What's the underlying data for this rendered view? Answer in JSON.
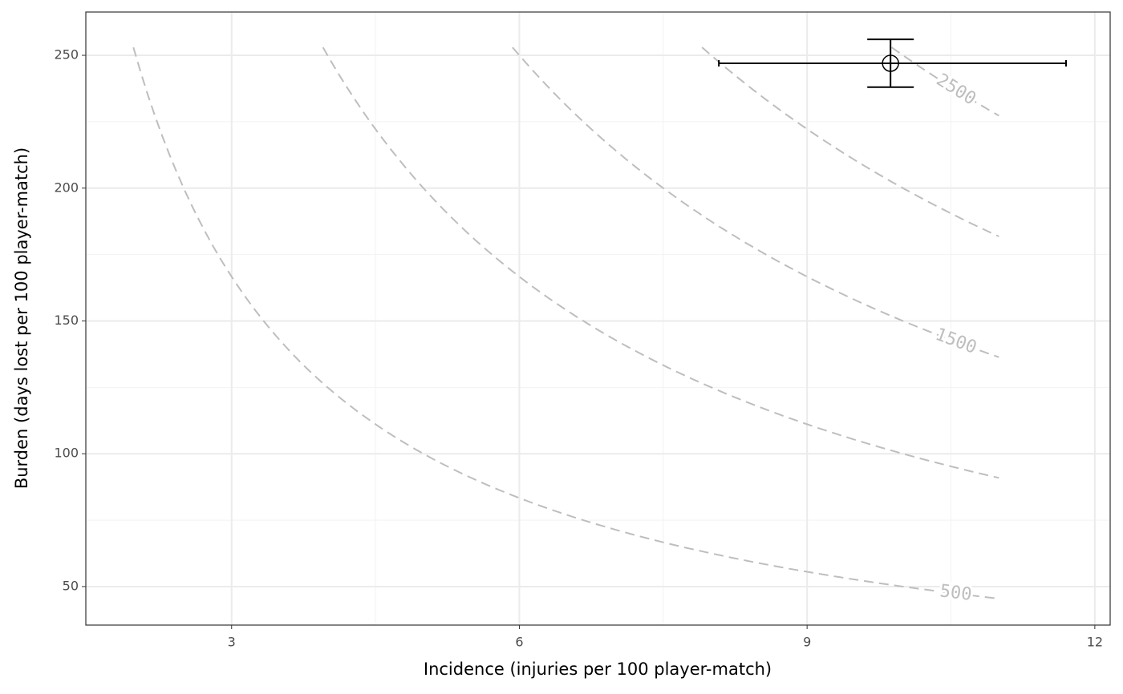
{
  "chart_data": {
    "type": "scatter",
    "xlabel": "Incidence (injuries per 100 player-match)",
    "ylabel": "Burden (days lost per 100 player-match)",
    "x": [
      9.87
    ],
    "values": [
      247
    ],
    "x_lower": [
      8.08
    ],
    "x_upper": [
      11.7
    ],
    "lower": [
      238
    ],
    "upper": [
      256
    ],
    "color": "#000000",
    "xlim": [
      1.48,
      12.16
    ],
    "ylim": [
      35.5,
      266.3
    ],
    "xticks": [
      3,
      6,
      9,
      12
    ],
    "yticks": [
      50,
      100,
      150,
      200,
      250
    ],
    "grid": true,
    "contours": {
      "levels": [
        500,
        1000,
        1500,
        2000,
        2500
      ],
      "value_labels": [
        "500",
        null,
        "1500",
        null,
        "2500"
      ],
      "x_end": 11,
      "y_start": 253,
      "color": "#bebebe"
    }
  }
}
